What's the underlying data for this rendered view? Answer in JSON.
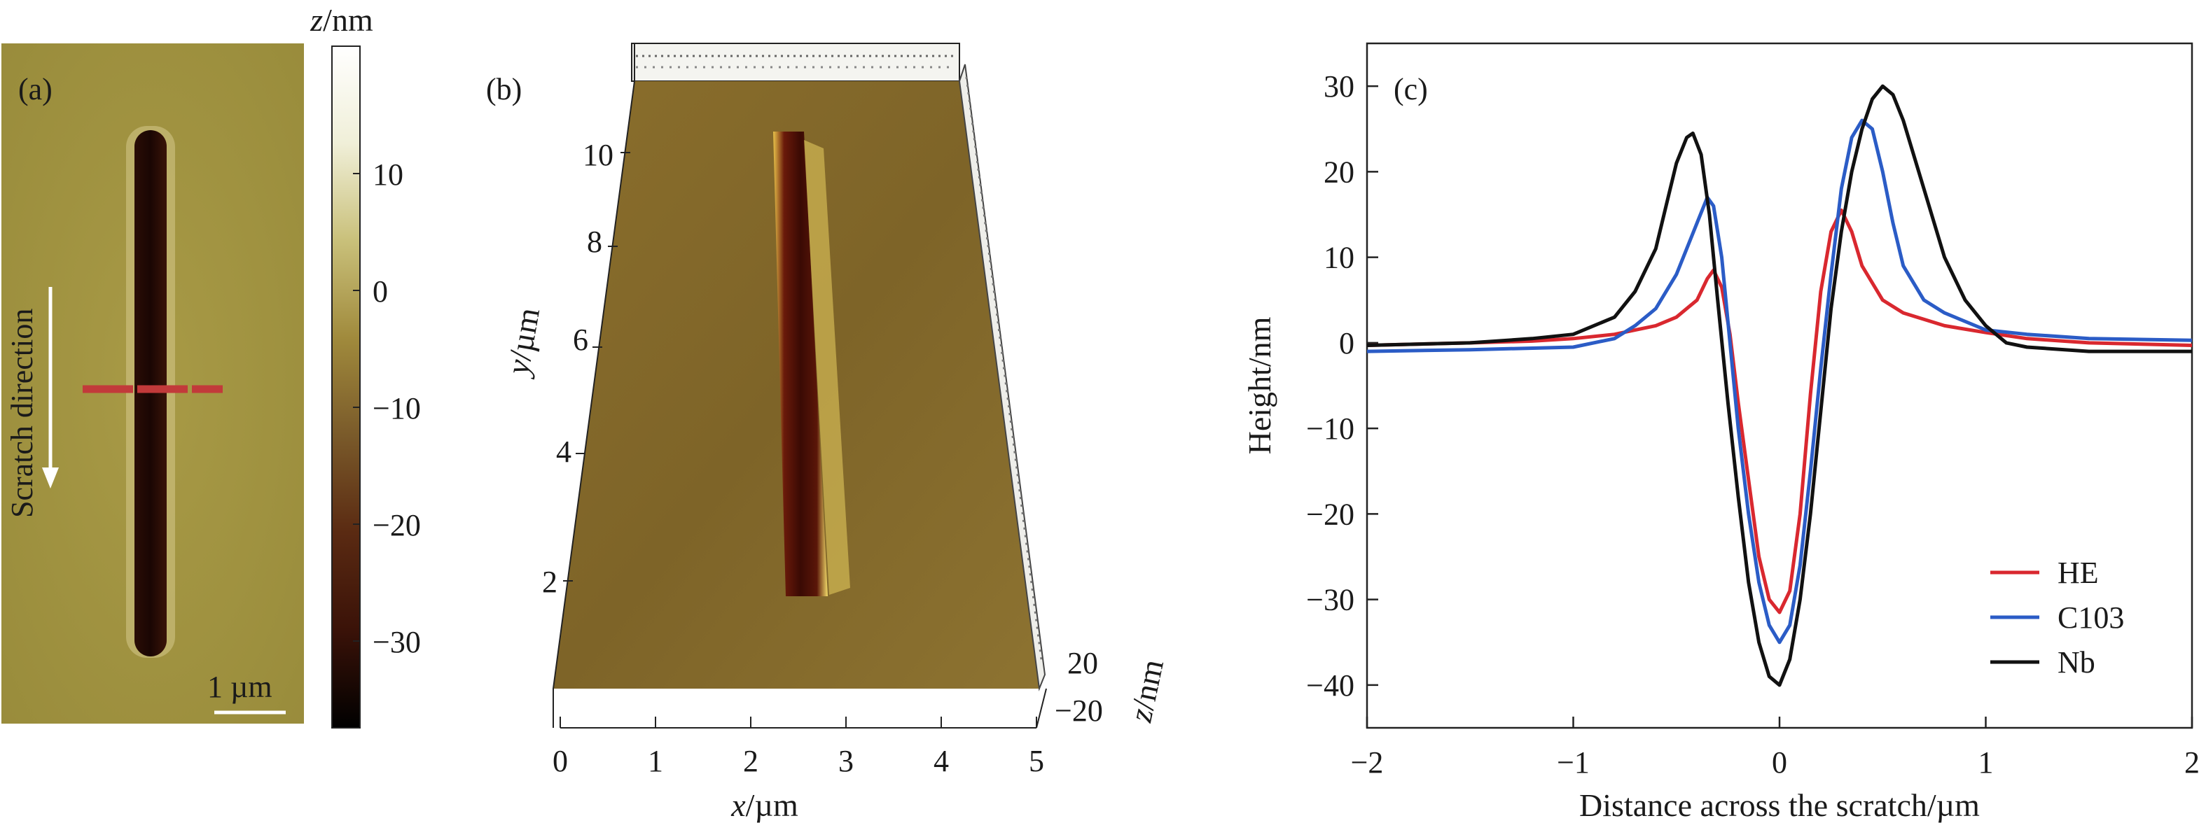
{
  "panels": {
    "a": {
      "label": "(a)",
      "direction_text": "Scratch direction",
      "scale_bar_label": "1 µm",
      "colorbar": {
        "title_var": "z",
        "title_unit": "/nm",
        "ticks": [
          "10",
          "0",
          "−10",
          "−20",
          "−30"
        ],
        "colors": [
          "#000000",
          "#3a1208",
          "#5a2a12",
          "#7a5a2a",
          "#a08a3c",
          "#c9c07a",
          "#f0efd8",
          "#ffffff"
        ]
      }
    },
    "b": {
      "label": "(b)",
      "x_axis_var": "x",
      "x_axis_unit": "/µm",
      "x_ticks": [
        "0",
        "1",
        "2",
        "3",
        "4",
        "5"
      ],
      "y_axis_var": "y",
      "y_axis_unit": "/µm",
      "y_ticks": [
        "2",
        "4",
        "6",
        "8",
        "10"
      ],
      "z_axis_var": "z",
      "z_axis_unit": "/nm",
      "z_ticks": [
        "20",
        "−20"
      ]
    }
  },
  "chart_data": {
    "type": "line",
    "panel_label": "(c)",
    "xlabel": "Distance across the scratch/µm",
    "ylabel": "Height/nm",
    "xlim": [
      -2,
      2
    ],
    "ylim": [
      -45,
      35
    ],
    "x_ticks": [
      -2,
      -1,
      0,
      1,
      2
    ],
    "y_ticks": [
      30,
      20,
      10,
      0,
      -10,
      -20,
      -30,
      -40
    ],
    "x_tick_labels": [
      "−2",
      "−1",
      "0",
      "1",
      "2"
    ],
    "y_tick_labels": [
      "30",
      "20",
      "10",
      "0",
      "−10",
      "−20",
      "−30",
      "−40"
    ],
    "grid": false,
    "legend_position": "bottom-right",
    "series": [
      {
        "name": "HE",
        "color": "#d9282f",
        "x": [
          -2,
          -1.5,
          -1.2,
          -1.0,
          -0.8,
          -0.6,
          -0.5,
          -0.4,
          -0.35,
          -0.32,
          -0.28,
          -0.24,
          -0.2,
          -0.15,
          -0.1,
          -0.05,
          0,
          0.05,
          0.1,
          0.15,
          0.2,
          0.25,
          0.3,
          0.35,
          0.4,
          0.5,
          0.6,
          0.8,
          1.0,
          1.2,
          1.5,
          2.0
        ],
        "y": [
          -0.3,
          0,
          0.2,
          0.5,
          1,
          2,
          3,
          5,
          7.5,
          8.5,
          6.5,
          1,
          -7,
          -16,
          -25,
          -30,
          -31.5,
          -29,
          -20,
          -6,
          6,
          13,
          15.5,
          13,
          9,
          5,
          3.5,
          2,
          1.2,
          0.5,
          0,
          -0.3
        ]
      },
      {
        "name": "C103",
        "color": "#2b5cc6",
        "x": [
          -2,
          -1.5,
          -1.0,
          -0.8,
          -0.7,
          -0.6,
          -0.5,
          -0.45,
          -0.4,
          -0.35,
          -0.32,
          -0.28,
          -0.24,
          -0.2,
          -0.15,
          -0.1,
          -0.05,
          0,
          0.05,
          0.1,
          0.15,
          0.2,
          0.25,
          0.3,
          0.35,
          0.4,
          0.45,
          0.5,
          0.55,
          0.6,
          0.7,
          0.8,
          1.0,
          1.2,
          1.5,
          2.0
        ],
        "y": [
          -1,
          -0.8,
          -0.5,
          0.5,
          2,
          4,
          8,
          11,
          14,
          17,
          16,
          10,
          0,
          -10,
          -20,
          -28,
          -33,
          -35,
          -33,
          -26,
          -15,
          -3,
          8,
          18,
          24,
          26,
          25,
          20,
          14,
          9,
          5,
          3.5,
          1.5,
          1,
          0.5,
          0.3
        ]
      },
      {
        "name": "Nb",
        "color": "#111111",
        "x": [
          -2,
          -1.5,
          -1.2,
          -1.0,
          -0.8,
          -0.7,
          -0.6,
          -0.55,
          -0.5,
          -0.45,
          -0.42,
          -0.38,
          -0.34,
          -0.3,
          -0.25,
          -0.2,
          -0.15,
          -0.1,
          -0.05,
          0,
          0.05,
          0.1,
          0.15,
          0.2,
          0.25,
          0.3,
          0.35,
          0.4,
          0.45,
          0.5,
          0.55,
          0.6,
          0.7,
          0.8,
          0.9,
          1.0,
          1.1,
          1.2,
          1.5,
          2.0
        ],
        "y": [
          -0.3,
          0,
          0.5,
          1,
          3,
          6,
          11,
          16,
          21,
          24,
          24.5,
          22,
          15,
          5,
          -7,
          -18,
          -28,
          -35,
          -39,
          -40,
          -37,
          -30,
          -20,
          -8,
          4,
          13,
          20,
          25,
          28.5,
          30,
          29,
          26,
          18,
          10,
          5,
          2,
          0,
          -0.5,
          -1,
          -1
        ]
      }
    ]
  }
}
